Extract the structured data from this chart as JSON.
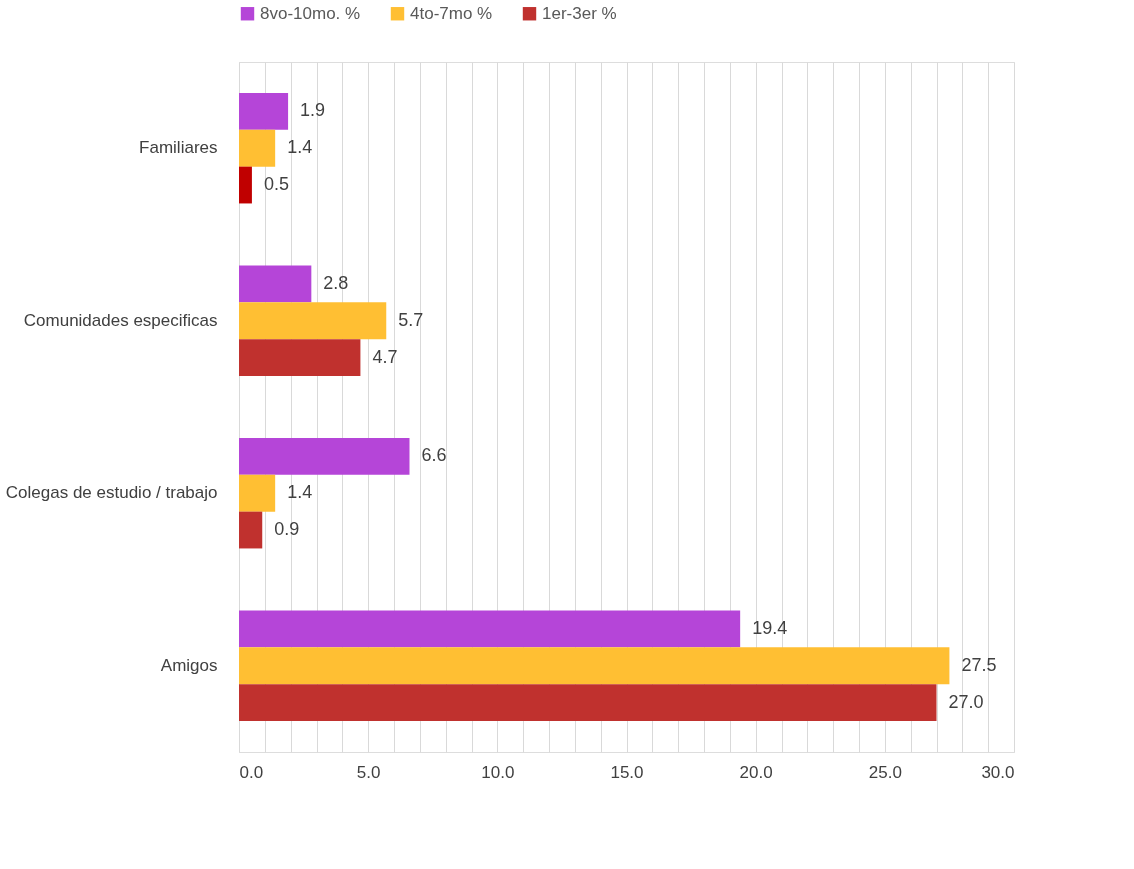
{
  "chart_data": {
    "type": "bar",
    "orientation": "horizontal",
    "categories": [
      "Familiares",
      "Comunidades especificas",
      "Colegas de estudio / trabajo",
      "Amigos"
    ],
    "series": [
      {
        "name": "8vo-10mo. %",
        "color": "#b545d8",
        "values": [
          1.9,
          2.8,
          6.6,
          19.4
        ],
        "value_labels": [
          "1.9",
          "2.8",
          "6.6",
          "19.4"
        ]
      },
      {
        "name": "4to-7mo %",
        "color": "#ffbf33",
        "values": [
          1.4,
          5.7,
          1.4,
          27.5
        ],
        "value_labels": [
          "1.4",
          "5.7",
          "1.4",
          "27.5"
        ]
      },
      {
        "name": "1er-3er %",
        "color": "#c0312e",
        "colors": [
          "#c00000",
          "#c0312e",
          "#c0312e",
          "#c0312e"
        ],
        "values": [
          0.5,
          4.7,
          0.9,
          27.0
        ],
        "value_labels": [
          "0.5",
          "4.7",
          "0.9",
          "27.0"
        ]
      }
    ],
    "xlim": [
      0,
      30
    ],
    "xticks": [
      {
        "value": 0,
        "label": "0.0"
      },
      {
        "value": 1,
        "label": null
      },
      {
        "value": 2,
        "label": null
      },
      {
        "value": 3,
        "label": null
      },
      {
        "value": 4,
        "label": null
      },
      {
        "value": 5,
        "label": "5.0"
      },
      {
        "value": 6,
        "label": null
      },
      {
        "value": 7,
        "label": null
      },
      {
        "value": 8,
        "label": null
      },
      {
        "value": 9,
        "label": null
      },
      {
        "value": 10,
        "label": "10.0"
      },
      {
        "value": 11,
        "label": null
      },
      {
        "value": 12,
        "label": null
      },
      {
        "value": 13,
        "label": null
      },
      {
        "value": 14,
        "label": null
      },
      {
        "value": 15,
        "label": "15.0"
      },
      {
        "value": 16,
        "label": null
      },
      {
        "value": 17,
        "label": null
      },
      {
        "value": 18,
        "label": null
      },
      {
        "value": 19,
        "label": null
      },
      {
        "value": 20,
        "label": "20.0"
      },
      {
        "value": 21,
        "label": null
      },
      {
        "value": 22,
        "label": null
      },
      {
        "value": 23,
        "label": null
      },
      {
        "value": 24,
        "label": null
      },
      {
        "value": 25,
        "label": "25.0"
      },
      {
        "value": 26,
        "label": null
      },
      {
        "value": 27,
        "label": null
      },
      {
        "value": 28,
        "label": null
      },
      {
        "value": 29,
        "label": null
      },
      {
        "value": 30,
        "label": "30.0"
      }
    ],
    "grid": "x",
    "legend": "top"
  }
}
